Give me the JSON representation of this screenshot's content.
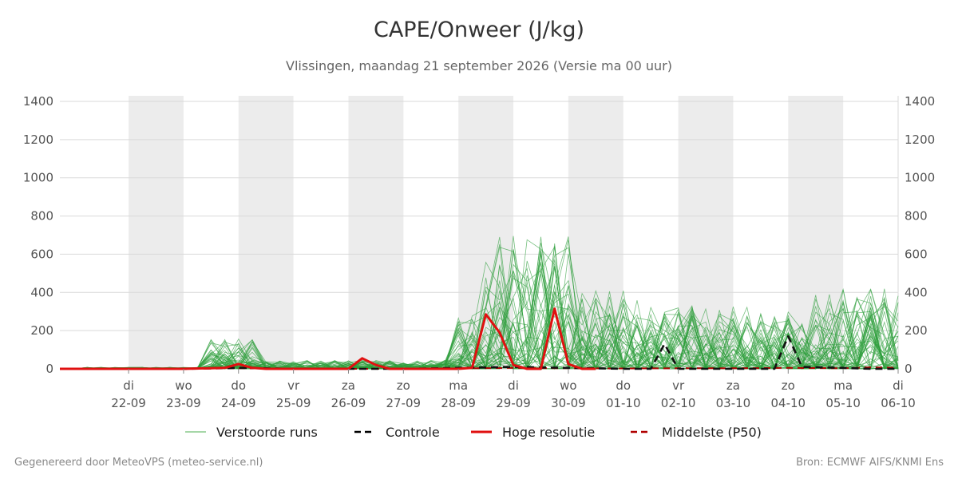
{
  "chart_data": {
    "type": "line",
    "title": "CAPE/Onweer (J/kg)",
    "subtitle": "Vlissingen, maandag 21 september 2026 (Versie ma 00 uur)",
    "ylim": [
      0,
      1400
    ],
    "y_ticks": [
      0,
      200,
      400,
      600,
      800,
      1000,
      1200,
      1400
    ],
    "x_range_days": [
      -0.25,
      15
    ],
    "x_ticks": [
      {
        "day": 1,
        "weekday": "di",
        "date": "22-09"
      },
      {
        "day": 2,
        "weekday": "wo",
        "date": "23-09"
      },
      {
        "day": 3,
        "weekday": "do",
        "date": "24-09"
      },
      {
        "day": 4,
        "weekday": "vr",
        "date": "25-09"
      },
      {
        "day": 5,
        "weekday": "za",
        "date": "26-09"
      },
      {
        "day": 6,
        "weekday": "zo",
        "date": "27-09"
      },
      {
        "day": 7,
        "weekday": "ma",
        "date": "28-09"
      },
      {
        "day": 8,
        "weekday": "di",
        "date": "29-09"
      },
      {
        "day": 9,
        "weekday": "wo",
        "date": "30-09"
      },
      {
        "day": 10,
        "weekday": "do",
        "date": "01-10"
      },
      {
        "day": 11,
        "weekday": "vr",
        "date": "02-10"
      },
      {
        "day": 12,
        "weekday": "za",
        "date": "03-10"
      },
      {
        "day": 13,
        "weekday": "zo",
        "date": "04-10"
      },
      {
        "day": 14,
        "weekday": "ma",
        "date": "05-10"
      },
      {
        "day": 15,
        "weekday": "di",
        "date": "06-10"
      }
    ],
    "shaded_days": [
      [
        1,
        2
      ],
      [
        3,
        4
      ],
      [
        5,
        6
      ],
      [
        7,
        8
      ],
      [
        9,
        10
      ],
      [
        11,
        12
      ],
      [
        13,
        14
      ]
    ],
    "grid": true,
    "legend_position": "bottom",
    "legend": [
      {
        "label": "Verstoorde runs",
        "color": "#4caf50",
        "style": "solid-thin"
      },
      {
        "label": "Controle",
        "color": "#000000",
        "style": "dashed"
      },
      {
        "label": "Hoge resolutie",
        "color": "#e01010",
        "style": "solid-thick"
      },
      {
        "label": "Middelste (P50)",
        "color": "#b00000",
        "style": "dashed"
      }
    ],
    "series": [
      {
        "name": "Hoge resolutie",
        "x": [
          -0.25,
          0,
          1,
          2,
          2.75,
          3,
          3.25,
          3.5,
          4,
          4.5,
          4.75,
          5,
          5.25,
          5.5,
          5.75,
          6,
          6.5,
          7,
          7.25,
          7.5,
          7.75,
          8,
          8.25,
          8.5,
          8.75,
          9,
          9.25,
          9.5
        ],
        "values": [
          0,
          0,
          0,
          0,
          5,
          25,
          5,
          0,
          0,
          0,
          0,
          0,
          55,
          20,
          0,
          0,
          0,
          0,
          5,
          285,
          190,
          20,
          0,
          0,
          315,
          25,
          0,
          0
        ]
      },
      {
        "name": "Controle",
        "x": [
          -0.25,
          2,
          3,
          4,
          5,
          6,
          7,
          8,
          9,
          10,
          10.5,
          10.75,
          11,
          11.5,
          12,
          12.5,
          12.75,
          13,
          13.25,
          14,
          14.5,
          15
        ],
        "values": [
          0,
          0,
          5,
          0,
          0,
          0,
          5,
          10,
          5,
          0,
          0,
          130,
          0,
          0,
          0,
          0,
          0,
          170,
          10,
          5,
          0,
          0
        ]
      },
      {
        "name": "Middelste (P50)",
        "x": [
          -0.25,
          1,
          2,
          3,
          4,
          5,
          6,
          7,
          8,
          9,
          10,
          11,
          12,
          13,
          14,
          14.5,
          15
        ],
        "values": [
          0,
          0,
          0,
          3,
          0,
          0,
          0,
          2,
          5,
          3,
          2,
          3,
          3,
          5,
          3,
          8,
          5
        ]
      }
    ]
  },
  "footer": {
    "left": "Gegenereerd door MeteoVPS (meteo-service.nl)",
    "right": "Bron: ECMWF AIFS/KNMI Ens"
  }
}
